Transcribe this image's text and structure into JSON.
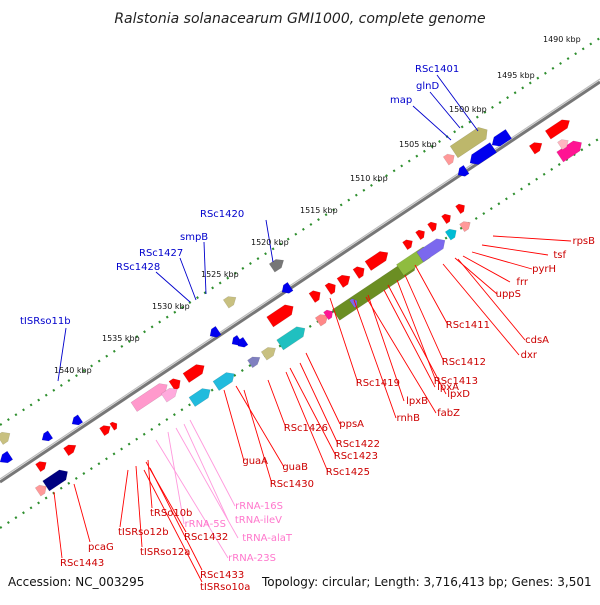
{
  "title": "Ralstonia solanacearum GMI1000, complete genome",
  "accession": "Accession: NC_003295",
  "topology": "Topology: circular; Length: 3,716,413 bp; Genes: 3,501",
  "colors": {
    "forward": "#ff0000",
    "reverse_label": "#0000cc",
    "rrna": "#ff66cc",
    "backbone": "#808080",
    "tick": "#2f8f2f"
  },
  "kbp_ticks": [
    "1490 kbp",
    "1495 kbp",
    "1500 kbp",
    "1505 kbp",
    "1510 kbp",
    "1515 kbp",
    "1520 kbp",
    "1525 kbp",
    "1530 kbp",
    "1535 kbp",
    "1540 kbp"
  ],
  "top_labels": [
    "RSc1401",
    "glnD",
    "map",
    "RSc1420",
    "smpB",
    "RSc1427",
    "RSc1428",
    "tISRso11b"
  ],
  "right_labels": [
    "rpsB",
    "tsf",
    "pyrH",
    "frr",
    "uppS",
    "cdsA",
    "dxr",
    "RSc1411",
    "RSc1412",
    "RSc1413",
    "lpxD",
    "lpxA",
    "RSc1419",
    "lpxB",
    "rnhB",
    "fabZ",
    "ppsA",
    "RSc1422",
    "RSc1423",
    "RSc1425",
    "RSc1426",
    "guaB",
    "guaA",
    "RSc1430"
  ],
  "rrna_labels": [
    "rRNA-16S",
    "tRNA-ileV",
    "tRNA-alaT",
    "rRNA-5S",
    "rRNA-23S"
  ],
  "bottom_labels": [
    "tRSo10b",
    "RSc1432",
    "tISRso12b",
    "tISRso12a",
    "pcaG",
    "RSc1443",
    "RSc1433",
    "tISRso10a"
  ]
}
